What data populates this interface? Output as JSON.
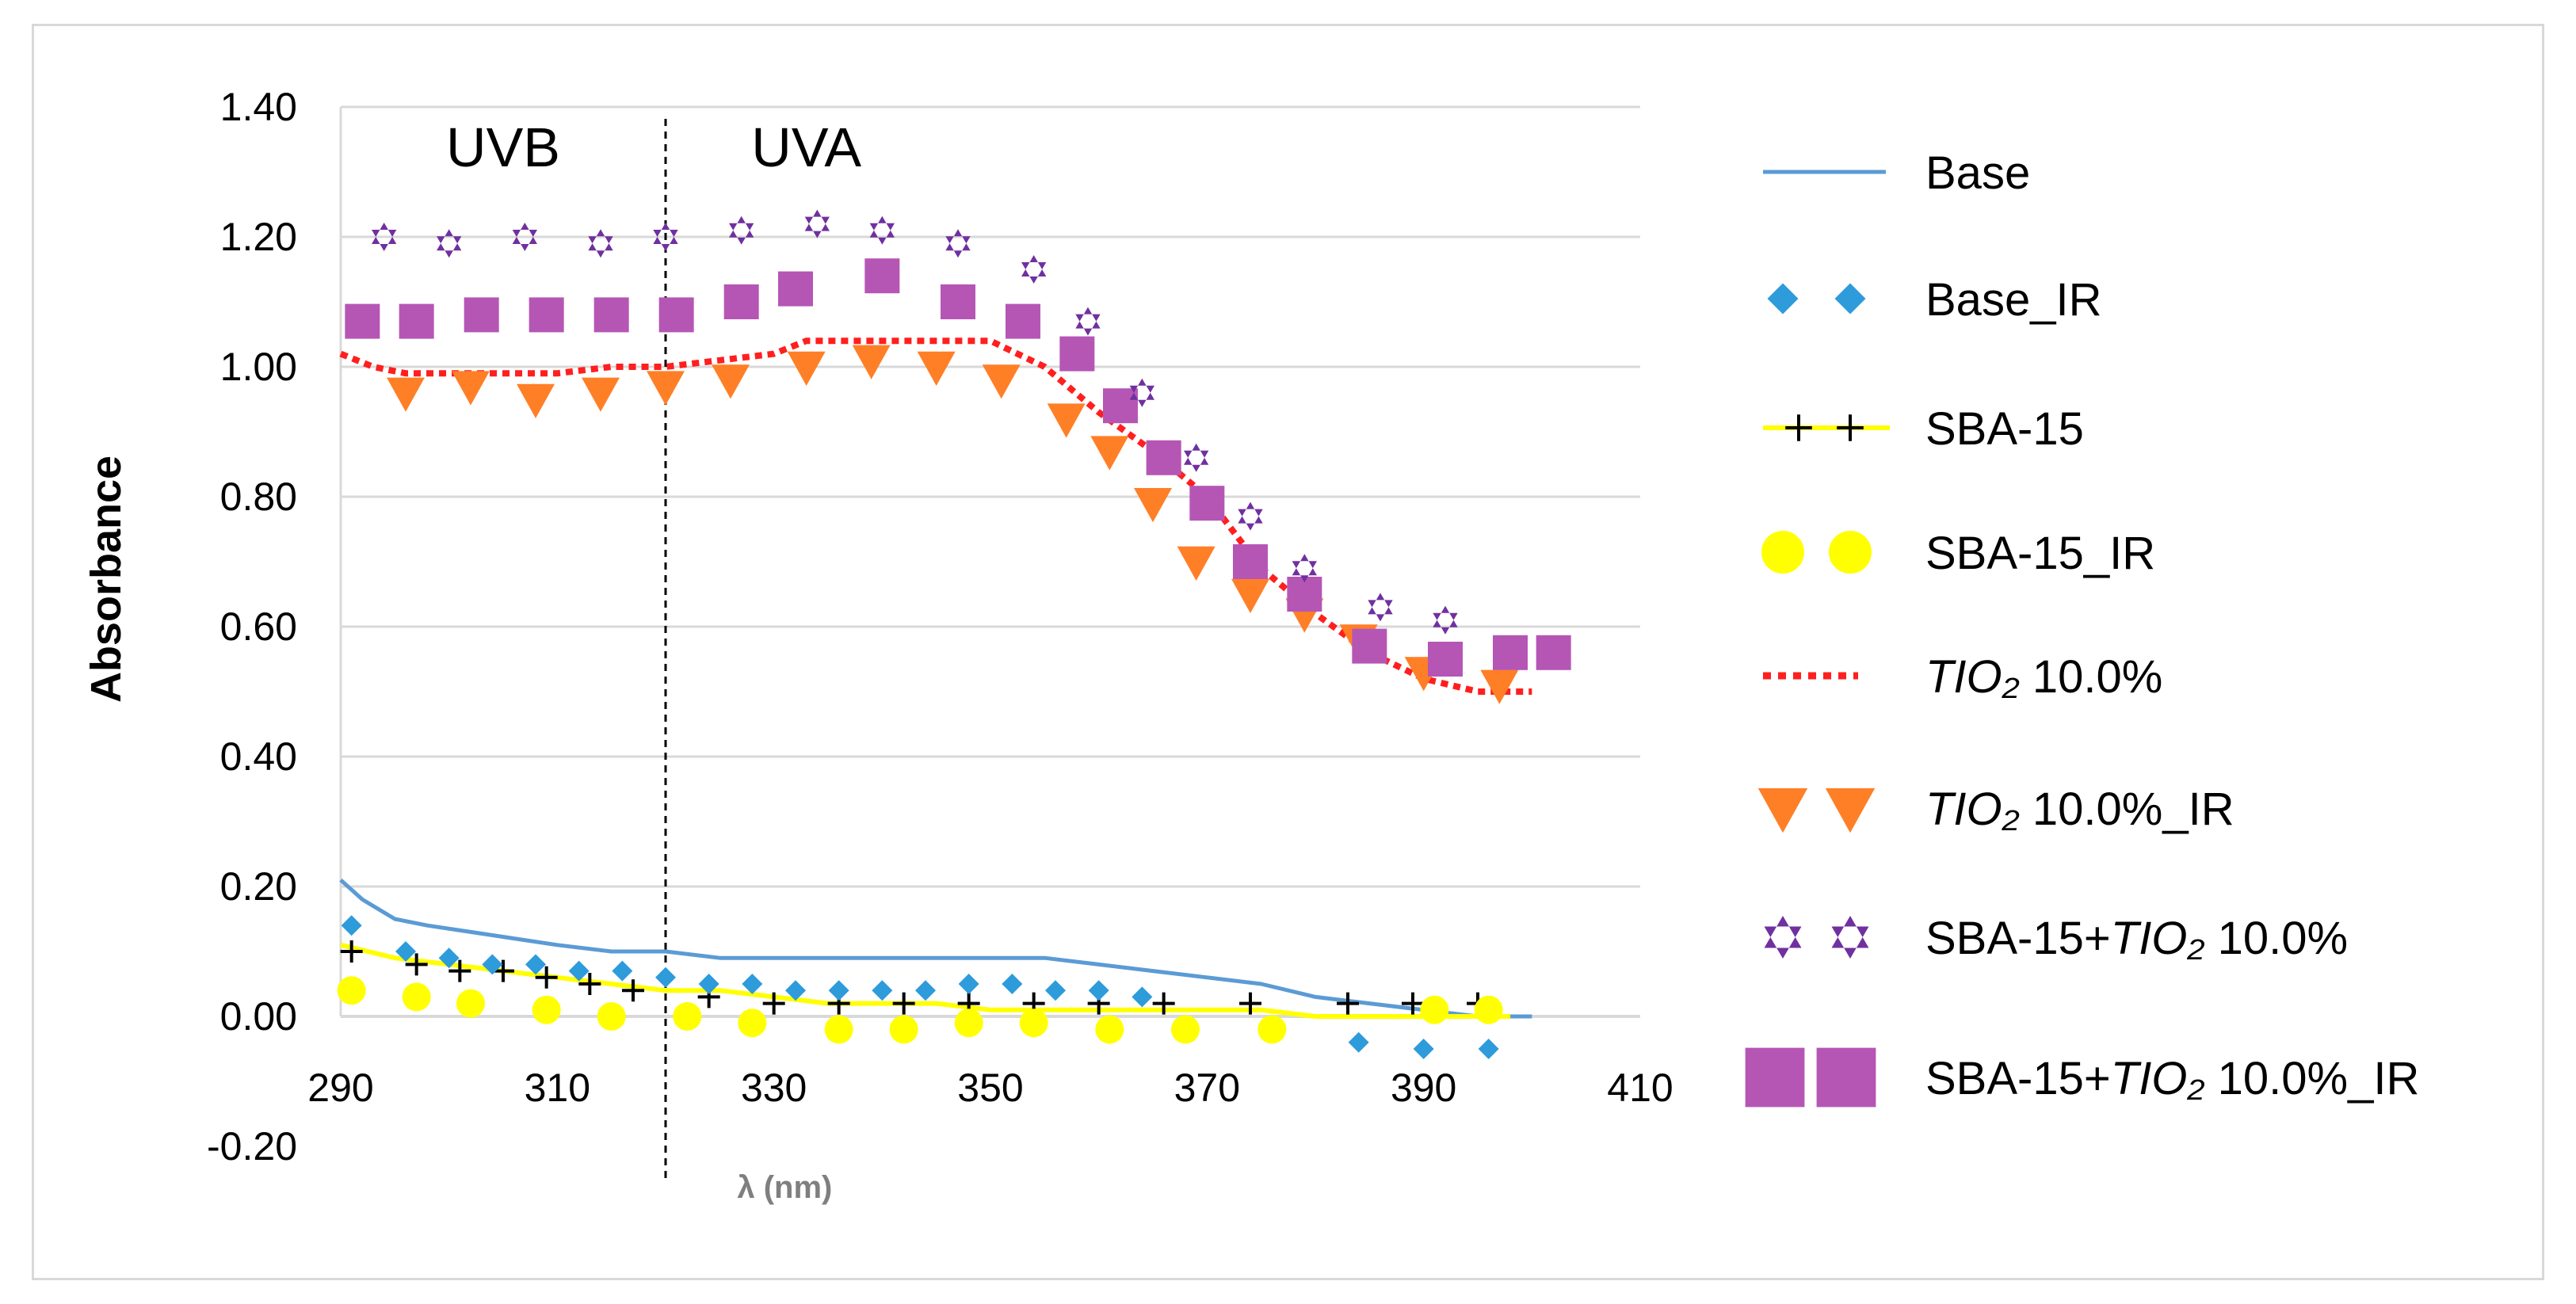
{
  "chart_data": {
    "type": "line",
    "title": "",
    "xlabel": "λ (nm)",
    "ylabel": "Absorbance",
    "xlim": [
      290,
      410
    ],
    "ylim": [
      -0.2,
      1.4
    ],
    "xticks": [
      "290",
      "310",
      "330",
      "350",
      "370",
      "390",
      "410"
    ],
    "yticks": [
      "-0.20",
      "0.00",
      "0.20",
      "0.40",
      "0.60",
      "0.80",
      "1.00",
      "1.20",
      "1.40"
    ],
    "grid": "horizontal",
    "regions": [
      {
        "label": "UVB",
        "x": 305
      },
      {
        "label": "UVA",
        "x": 333
      }
    ],
    "divider_x": 320,
    "legend_position": "right",
    "series": [
      {
        "name": "Base",
        "style": "line",
        "color": "#5b9bd5",
        "x": [
          290,
          292,
          295,
          298,
          302,
          306,
          310,
          315,
          320,
          325,
          330,
          335,
          340,
          345,
          350,
          355,
          360,
          365,
          370,
          375,
          380,
          385,
          390,
          395,
          400
        ],
        "y": [
          0.21,
          0.18,
          0.15,
          0.14,
          0.13,
          0.12,
          0.11,
          0.1,
          0.1,
          0.09,
          0.09,
          0.09,
          0.09,
          0.09,
          0.09,
          0.09,
          0.08,
          0.07,
          0.06,
          0.05,
          0.03,
          0.02,
          0.01,
          0.0,
          0.0
        ]
      },
      {
        "name": "Base_IR",
        "style": "diamond",
        "color": "#2e9bdb",
        "x": [
          291,
          296,
          300,
          304,
          308,
          312,
          316,
          320,
          324,
          328,
          332,
          336,
          340,
          344,
          348,
          352,
          356,
          360,
          364,
          384,
          390,
          396
        ],
        "y": [
          0.14,
          0.1,
          0.09,
          0.08,
          0.08,
          0.07,
          0.07,
          0.06,
          0.05,
          0.05,
          0.04,
          0.04,
          0.04,
          0.04,
          0.05,
          0.05,
          0.04,
          0.04,
          0.03,
          -0.04,
          -0.05,
          -0.05
        ]
      },
      {
        "name": "SBA-15",
        "style": "line-plus",
        "color": "#ffff00",
        "marker_color": "#000000",
        "x": [
          290,
          295,
          300,
          305,
          310,
          315,
          320,
          325,
          330,
          335,
          340,
          345,
          350,
          355,
          360,
          365,
          370,
          375,
          380,
          385,
          390,
          395,
          398
        ],
        "y": [
          0.11,
          0.09,
          0.08,
          0.07,
          0.06,
          0.05,
          0.04,
          0.04,
          0.03,
          0.02,
          0.02,
          0.02,
          0.01,
          0.01,
          0.01,
          0.01,
          0.01,
          0.01,
          0.0,
          0.0,
          0.0,
          0.0,
          0.0
        ],
        "marker_x": [
          291,
          297,
          301,
          305,
          309,
          313,
          317,
          324,
          330,
          336,
          342,
          348,
          354,
          360,
          366,
          374,
          383,
          389,
          395
        ],
        "marker_y": [
          0.1,
          0.08,
          0.07,
          0.07,
          0.06,
          0.05,
          0.04,
          0.03,
          0.02,
          0.02,
          0.02,
          0.02,
          0.02,
          0.02,
          0.02,
          0.02,
          0.02,
          0.02,
          0.02
        ]
      },
      {
        "name": "SBA-15_IR",
        "style": "circle",
        "color": "#ffff00",
        "x": [
          291,
          297,
          302,
          309,
          315,
          322,
          328,
          336,
          342,
          348,
          354,
          361,
          368,
          376,
          391,
          396
        ],
        "y": [
          0.04,
          0.03,
          0.02,
          0.01,
          0.0,
          0.0,
          -0.01,
          -0.02,
          -0.02,
          -0.01,
          -0.01,
          -0.02,
          -0.02,
          -0.02,
          0.01,
          0.01
        ]
      },
      {
        "name": "TIO2 10.0%",
        "style": "dotted",
        "color": "#ff1f1f",
        "x": [
          290,
          293,
          296,
          300,
          305,
          310,
          315,
          320,
          325,
          330,
          333,
          336,
          340,
          345,
          350,
          355,
          360,
          365,
          370,
          375,
          380,
          385,
          390,
          395,
          400
        ],
        "y": [
          1.02,
          1.0,
          0.99,
          0.99,
          0.99,
          0.99,
          1.0,
          1.0,
          1.01,
          1.02,
          1.04,
          1.04,
          1.04,
          1.04,
          1.04,
          1.0,
          0.93,
          0.87,
          0.8,
          0.69,
          0.62,
          0.56,
          0.52,
          0.5,
          0.5
        ]
      },
      {
        "name": "TIO2 10.0%_IR",
        "style": "triangle-down",
        "color": "#ff7f27",
        "x": [
          296,
          302,
          308,
          314,
          320,
          326,
          333,
          339,
          345,
          351,
          357,
          361,
          365,
          369,
          374,
          379,
          384,
          390,
          397
        ],
        "y": [
          0.96,
          0.97,
          0.95,
          0.96,
          0.97,
          0.98,
          1.0,
          1.01,
          1.0,
          0.98,
          0.92,
          0.87,
          0.79,
          0.7,
          0.65,
          0.62,
          0.58,
          0.53,
          0.51
        ]
      },
      {
        "name": "SBA-15+TIO2 10.0%",
        "style": "star",
        "color": "#7030a0",
        "x": [
          294,
          300,
          307,
          314,
          320,
          327,
          334,
          340,
          347,
          354,
          359,
          364,
          369,
          374,
          379,
          386,
          392
        ],
        "y": [
          1.2,
          1.19,
          1.2,
          1.19,
          1.2,
          1.21,
          1.22,
          1.21,
          1.19,
          1.15,
          1.07,
          0.96,
          0.86,
          0.77,
          0.69,
          0.63,
          0.61
        ]
      },
      {
        "name": "SBA-15+TIO2 10.0%_IR",
        "style": "square",
        "color": "#b556b5",
        "x": [
          292,
          297,
          303,
          309,
          315,
          321,
          327,
          332,
          340,
          347,
          353,
          358,
          362,
          366,
          370,
          374,
          379,
          385,
          392,
          398,
          402
        ],
        "y": [
          1.07,
          1.07,
          1.08,
          1.08,
          1.08,
          1.08,
          1.1,
          1.12,
          1.14,
          1.1,
          1.07,
          1.02,
          0.94,
          0.86,
          0.79,
          0.7,
          0.65,
          0.57,
          0.55,
          0.56,
          0.56
        ]
      }
    ],
    "legend": [
      {
        "prefix": "",
        "italic": "",
        "suffix": "Base"
      },
      {
        "prefix": "",
        "italic": "",
        "suffix": "Base_IR"
      },
      {
        "prefix": "",
        "italic": "",
        "suffix": "SBA-15"
      },
      {
        "prefix": "",
        "italic": "",
        "suffix": "SBA-15_IR"
      },
      {
        "prefix": "",
        "italic": "TIO₂",
        "suffix": " 10.0%"
      },
      {
        "prefix": "",
        "italic": "TIO₂",
        "suffix": " 10.0%_IR"
      },
      {
        "prefix": "SBA-15+",
        "italic": "TIO₂",
        "suffix": " 10.0%"
      },
      {
        "prefix": "SBA-15+",
        "italic": "TIO₂",
        "suffix": " 10.0%_IR"
      }
    ]
  }
}
